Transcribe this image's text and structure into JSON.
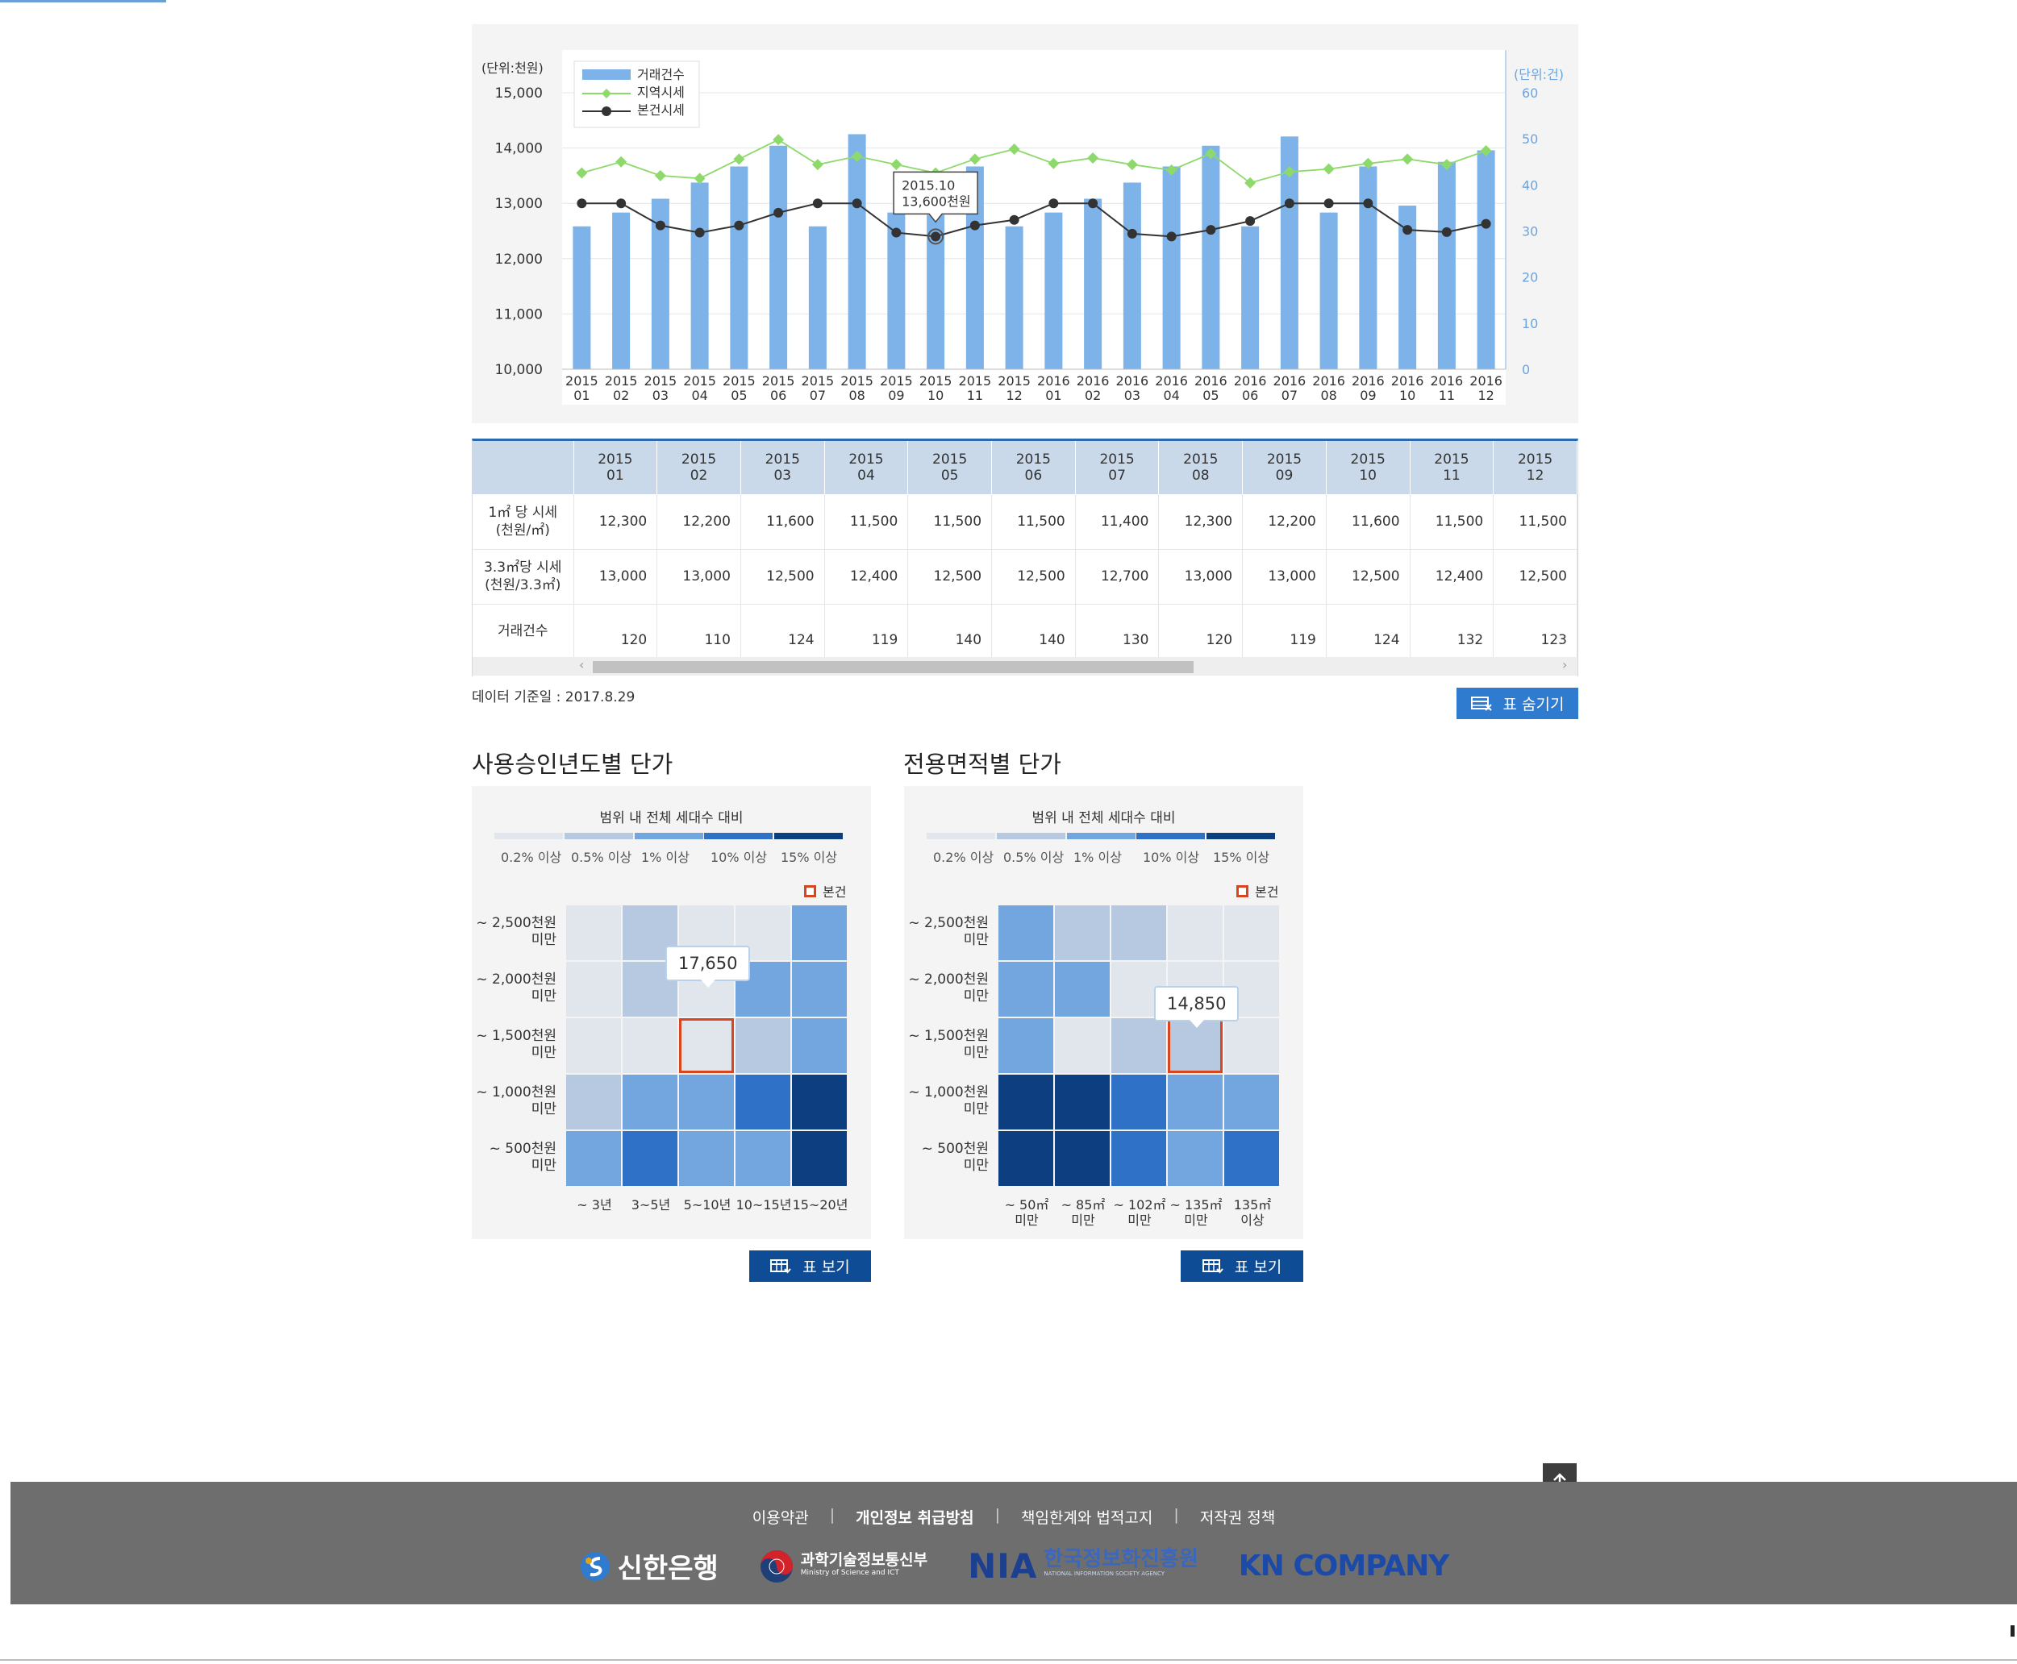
{
  "chart_data": {
    "type": "bar",
    "left_unit": "(단위:천원)",
    "right_unit": "(단위:건)",
    "left_ticks": [
      "15,000",
      "14,000",
      "13,000",
      "12,000",
      "11,000",
      "10,000"
    ],
    "right_ticks": [
      "60",
      "50",
      "40",
      "30",
      "20",
      "10",
      "0"
    ],
    "ylim_left": [
      10000,
      15000
    ],
    "ylim_right": [
      0,
      60
    ],
    "categories": [
      "2015 01",
      "2015 02",
      "2015 03",
      "2015 04",
      "2015 05",
      "2015 06",
      "2015 07",
      "2015 08",
      "2015 09",
      "2015 10",
      "2015 11",
      "2015 12",
      "2016 01",
      "2016 02",
      "2016 03",
      "2016 04",
      "2016 05",
      "2016 06",
      "2016 07",
      "2016 08",
      "2016 09",
      "2016 10",
      "2016 11",
      "2016 12"
    ],
    "cat_years": [
      "2015",
      "2015",
      "2015",
      "2015",
      "2015",
      "2015",
      "2015",
      "2015",
      "2015",
      "2015",
      "2015",
      "2015",
      "2016",
      "2016",
      "2016",
      "2016",
      "2016",
      "2016",
      "2016",
      "2016",
      "2016",
      "2016",
      "2016",
      "2016"
    ],
    "cat_months": [
      "01",
      "02",
      "03",
      "04",
      "05",
      "06",
      "07",
      "08",
      "09",
      "10",
      "11",
      "12",
      "01",
      "02",
      "03",
      "04",
      "05",
      "06",
      "07",
      "08",
      "09",
      "10",
      "11",
      "12"
    ],
    "series": [
      {
        "name": "거래건수",
        "type": "bar",
        "axis": "right",
        "color": "#7db3e8",
        "values": [
          31,
          34,
          37,
          40.5,
          44,
          48.5,
          31,
          51,
          34,
          33.5,
          44,
          31,
          34,
          37,
          40.5,
          44,
          48.5,
          31,
          50.5,
          34,
          44,
          35.5,
          45,
          47.5
        ]
      },
      {
        "name": "지역시세",
        "type": "line",
        "axis": "left",
        "color": "#8ed96b",
        "values": [
          13550,
          13750,
          13500,
          13450,
          13800,
          14150,
          13700,
          13850,
          13700,
          13550,
          13800,
          13980,
          13720,
          13820,
          13700,
          13600,
          13900,
          13370,
          13570,
          13620,
          13720,
          13800,
          13700,
          13950
        ]
      },
      {
        "name": "본건시세",
        "type": "line",
        "axis": "left",
        "color": "#333333",
        "values": [
          13000,
          13000,
          12600,
          12470,
          12600,
          12830,
          13000,
          13000,
          12470,
          12400,
          12600,
          12700,
          13000,
          13000,
          12450,
          12400,
          12520,
          12680,
          13000,
          13000,
          13000,
          12520,
          12480,
          12630
        ]
      }
    ],
    "tooltip": {
      "line1": "2015.10",
      "line2": "13,600천원"
    }
  },
  "table": {
    "months": [
      {
        "y": "2015",
        "m": "01"
      },
      {
        "y": "2015",
        "m": "02"
      },
      {
        "y": "2015",
        "m": "03"
      },
      {
        "y": "2015",
        "m": "04"
      },
      {
        "y": "2015",
        "m": "05"
      },
      {
        "y": "2015",
        "m": "06"
      },
      {
        "y": "2015",
        "m": "07"
      },
      {
        "y": "2015",
        "m": "08"
      },
      {
        "y": "2015",
        "m": "09"
      },
      {
        "y": "2015",
        "m": "10"
      },
      {
        "y": "2015",
        "m": "11"
      },
      {
        "y": "2015",
        "m": "12"
      }
    ],
    "rows": [
      {
        "label1": "1㎡ 당 시세",
        "label2": "(천원/㎡)",
        "values": [
          "12,300",
          "12,200",
          "11,600",
          "11,500",
          "11,500",
          "11,500",
          "11,400",
          "12,300",
          "12,200",
          "11,600",
          "11,500",
          "11,500"
        ]
      },
      {
        "label1": "3.3㎡당 시세",
        "label2": "(천원/3.3㎡)",
        "values": [
          "13,000",
          "13,000",
          "12,500",
          "12,400",
          "12,500",
          "12,500",
          "12,700",
          "13,000",
          "13,000",
          "12,500",
          "12,400",
          "12,500"
        ]
      },
      {
        "label1": "거래건수",
        "label2": "",
        "values": [
          "120",
          "110",
          "124",
          "119",
          "140",
          "140",
          "130",
          "120",
          "119",
          "124",
          "132",
          "123"
        ]
      }
    ],
    "scroll_left": "‹",
    "scroll_right": "›"
  },
  "data_date": "데이터 기준일 : 2017.8.29",
  "hide_table_label": "표 숨기기",
  "heatmaps": [
    {
      "title": "사용승인년도별 단가",
      "legend_title": "범위 내 전체 세대수 대비",
      "legend": [
        "0.2% 이상",
        "0.5% 이상",
        "1% 이상",
        "10% 이상",
        "15% 이상"
      ],
      "own_label": "본건",
      "rows": [
        [
          "~ 2,500천원",
          "미만"
        ],
        [
          "~ 2,000천원",
          "미만"
        ],
        [
          "~ 1,500천원",
          "미만"
        ],
        [
          "~ 1,000천원",
          "미만"
        ],
        [
          "~ 500천원",
          "미만"
        ]
      ],
      "cols": [
        [
          "~ 3년",
          ""
        ],
        [
          "3~5년",
          ""
        ],
        [
          "5~10년",
          ""
        ],
        [
          "10~15년",
          ""
        ],
        [
          "15~20년",
          ""
        ]
      ],
      "levels": [
        [
          0,
          1,
          0,
          0,
          2
        ],
        [
          0,
          1,
          0,
          2,
          2
        ],
        [
          0,
          0,
          0,
          1,
          2
        ],
        [
          1,
          2,
          2,
          3,
          4
        ],
        [
          2,
          3,
          2,
          2,
          4
        ]
      ],
      "own_cell": [
        2,
        2
      ],
      "tooltip": "17,650",
      "button": "표 보기"
    },
    {
      "title": "전용면적별 단가",
      "legend_title": "범위 내 전체 세대수 대비",
      "legend": [
        "0.2% 이상",
        "0.5% 이상",
        "1% 이상",
        "10% 이상",
        "15% 이상"
      ],
      "own_label": "본건",
      "rows": [
        [
          "~ 2,500천원",
          "미만"
        ],
        [
          "~ 2,000천원",
          "미만"
        ],
        [
          "~ 1,500천원",
          "미만"
        ],
        [
          "~ 1,000천원",
          "미만"
        ],
        [
          "~ 500천원",
          "미만"
        ]
      ],
      "cols": [
        [
          "~ 50㎡",
          "미만"
        ],
        [
          "~ 85㎡",
          "미만"
        ],
        [
          "~ 102㎡",
          "미만"
        ],
        [
          "~ 135㎡",
          "미만"
        ],
        [
          "135㎡",
          "이상"
        ]
      ],
      "levels": [
        [
          2,
          1,
          1,
          0,
          0
        ],
        [
          2,
          2,
          0,
          0,
          0
        ],
        [
          2,
          0,
          1,
          1,
          0
        ],
        [
          4,
          4,
          3,
          2,
          2
        ],
        [
          4,
          4,
          3,
          2,
          3
        ]
      ],
      "own_cell": [
        2,
        3
      ],
      "tooltip": "14,850",
      "button": "표 보기"
    }
  ],
  "level_colors": [
    "#e1e6ec",
    "#b6c9e0",
    "#73a6de",
    "#2f71c6",
    "#0c3e80"
  ],
  "footer": {
    "links": [
      "이용약관",
      "개인정보 취급방침",
      "책임한계와 법적고지",
      "저작권 정책"
    ],
    "logos": {
      "shinhan": "신한은행",
      "msit_ko": "과학기술정보통신부",
      "msit_en": "Ministry of Science and ICT",
      "nia": "NIA",
      "nia_ko": "한국정보화진흥원",
      "nia_en": "NATIONAL INFORMATION SOCIETY AGENCY",
      "kn": "KN COMPANY"
    }
  },
  "scroll_top_icon": "arrow-up-icon"
}
